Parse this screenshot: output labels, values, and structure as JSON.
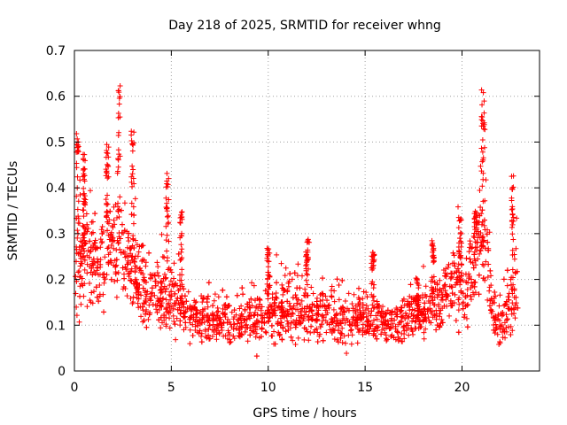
{
  "chart_data": {
    "type": "scatter",
    "title": "Day 218 of 2025, SRMTID for receiver whng",
    "xlabel": "GPS time / hours",
    "ylabel": "SRMTID / TECUs",
    "xlim": [
      0,
      24
    ],
    "ylim": [
      0,
      0.7
    ],
    "x_ticks": [
      0,
      5,
      10,
      15,
      20
    ],
    "x_tick_labels": [
      "0",
      "5",
      "10",
      "15",
      "20"
    ],
    "y_ticks": [
      0,
      0.1,
      0.2,
      0.3,
      0.4,
      0.5,
      0.6,
      0.7
    ],
    "y_tick_labels": [
      "0",
      "0.1",
      "0.2",
      "0.3",
      "0.4",
      "0.5",
      "0.6",
      "0.7"
    ],
    "grid": true,
    "marker": "plus",
    "color": "#ff0000",
    "envelope": [
      {
        "x": 0.0,
        "y": 0.19,
        "spread": 0.09
      },
      {
        "x": 0.5,
        "y": 0.25,
        "spread": 0.1
      },
      {
        "x": 1.0,
        "y": 0.23,
        "spread": 0.09
      },
      {
        "x": 1.5,
        "y": 0.24,
        "spread": 0.09
      },
      {
        "x": 2.0,
        "y": 0.27,
        "spread": 0.1
      },
      {
        "x": 2.5,
        "y": 0.25,
        "spread": 0.1
      },
      {
        "x": 3.0,
        "y": 0.22,
        "spread": 0.09
      },
      {
        "x": 3.5,
        "y": 0.19,
        "spread": 0.08
      },
      {
        "x": 4.0,
        "y": 0.17,
        "spread": 0.07
      },
      {
        "x": 4.5,
        "y": 0.16,
        "spread": 0.07
      },
      {
        "x": 5.0,
        "y": 0.15,
        "spread": 0.07
      },
      {
        "x": 5.5,
        "y": 0.14,
        "spread": 0.06
      },
      {
        "x": 6.0,
        "y": 0.12,
        "spread": 0.05
      },
      {
        "x": 7.0,
        "y": 0.105,
        "spread": 0.045
      },
      {
        "x": 8.0,
        "y": 0.11,
        "spread": 0.05
      },
      {
        "x": 9.0,
        "y": 0.12,
        "spread": 0.055
      },
      {
        "x": 10.0,
        "y": 0.12,
        "spread": 0.055
      },
      {
        "x": 11.0,
        "y": 0.13,
        "spread": 0.06
      },
      {
        "x": 12.0,
        "y": 0.125,
        "spread": 0.06
      },
      {
        "x": 13.0,
        "y": 0.12,
        "spread": 0.055
      },
      {
        "x": 14.0,
        "y": 0.115,
        "spread": 0.05
      },
      {
        "x": 15.0,
        "y": 0.11,
        "spread": 0.05
      },
      {
        "x": 16.0,
        "y": 0.105,
        "spread": 0.045
      },
      {
        "x": 17.0,
        "y": 0.11,
        "spread": 0.05
      },
      {
        "x": 18.0,
        "y": 0.12,
        "spread": 0.055
      },
      {
        "x": 19.0,
        "y": 0.15,
        "spread": 0.06
      },
      {
        "x": 19.5,
        "y": 0.19,
        "spread": 0.07
      },
      {
        "x": 20.0,
        "y": 0.17,
        "spread": 0.07
      },
      {
        "x": 20.5,
        "y": 0.2,
        "spread": 0.08
      },
      {
        "x": 21.0,
        "y": 0.3,
        "spread": 0.1
      },
      {
        "x": 21.3,
        "y": 0.25,
        "spread": 0.1
      },
      {
        "x": 21.6,
        "y": 0.11,
        "spread": 0.05
      },
      {
        "x": 22.0,
        "y": 0.1,
        "spread": 0.05
      },
      {
        "x": 22.5,
        "y": 0.14,
        "spread": 0.07
      },
      {
        "x": 22.8,
        "y": 0.18,
        "spread": 0.08
      }
    ],
    "spikes": [
      {
        "x": 0.15,
        "y": 0.52,
        "width": 0.15
      },
      {
        "x": 0.5,
        "y": 0.48,
        "width": 0.12
      },
      {
        "x": 1.7,
        "y": 0.5,
        "width": 0.15
      },
      {
        "x": 2.3,
        "y": 0.62,
        "width": 0.12
      },
      {
        "x": 3.0,
        "y": 0.53,
        "width": 0.15
      },
      {
        "x": 4.8,
        "y": 0.43,
        "width": 0.15
      },
      {
        "x": 5.5,
        "y": 0.36,
        "width": 0.12
      },
      {
        "x": 10.0,
        "y": 0.28,
        "width": 0.15
      },
      {
        "x": 12.0,
        "y": 0.29,
        "width": 0.15
      },
      {
        "x": 15.4,
        "y": 0.27,
        "width": 0.15
      },
      {
        "x": 17.7,
        "y": 0.2,
        "width": 0.15
      },
      {
        "x": 18.5,
        "y": 0.3,
        "width": 0.15
      },
      {
        "x": 19.9,
        "y": 0.34,
        "width": 0.15
      },
      {
        "x": 20.7,
        "y": 0.35,
        "width": 0.15
      },
      {
        "x": 21.1,
        "y": 0.62,
        "width": 0.2
      },
      {
        "x": 22.6,
        "y": 0.43,
        "width": 0.12
      }
    ],
    "x_data_end": 22.9
  }
}
